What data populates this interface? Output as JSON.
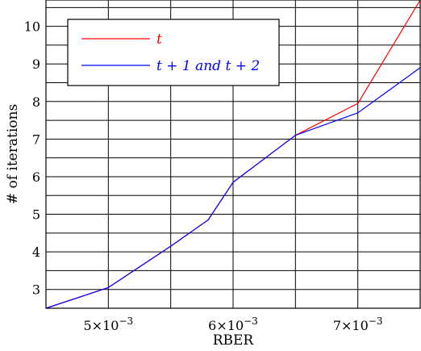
{
  "chart_data": {
    "type": "line",
    "xlabel": "RBER",
    "ylabel": "# of iterations",
    "xlim": [
      0.0045,
      0.0075
    ],
    "ylim": [
      2.5,
      10.7
    ],
    "x_ticks": [
      {
        "value": 0.005,
        "mantissa": "5",
        "exponent": "−3"
      },
      {
        "value": 0.006,
        "mantissa": "6",
        "exponent": "−3"
      },
      {
        "value": 0.007,
        "mantissa": "7",
        "exponent": "−3"
      }
    ],
    "y_ticks": [
      3,
      4,
      5,
      6,
      7,
      8,
      9,
      10
    ],
    "x_grid": [
      0.005,
      0.0055,
      0.006,
      0.0065,
      0.007
    ],
    "y_grid": [
      3.0,
      3.5,
      4.0,
      4.5,
      5.0,
      5.5,
      6.0,
      6.5,
      7.0,
      7.5,
      8.0,
      8.5,
      9.0,
      9.5,
      10.0,
      10.5
    ],
    "grid": true,
    "legend_position": "top-left",
    "series": [
      {
        "name": "t",
        "color": "#ff0000",
        "x": [
          0.0045,
          0.005,
          0.0055,
          0.0058,
          0.006,
          0.0065,
          0.007,
          0.0075
        ],
        "y": [
          2.5,
          3.05,
          4.15,
          4.85,
          5.85,
          7.1,
          7.95,
          10.7
        ]
      },
      {
        "name": "t + 1 and t + 2",
        "color": "#0000ff",
        "x": [
          0.0045,
          0.005,
          0.0055,
          0.0058,
          0.006,
          0.0065,
          0.007,
          0.0075
        ],
        "y": [
          2.5,
          3.05,
          4.15,
          4.85,
          5.85,
          7.1,
          7.7,
          8.9
        ]
      }
    ]
  }
}
